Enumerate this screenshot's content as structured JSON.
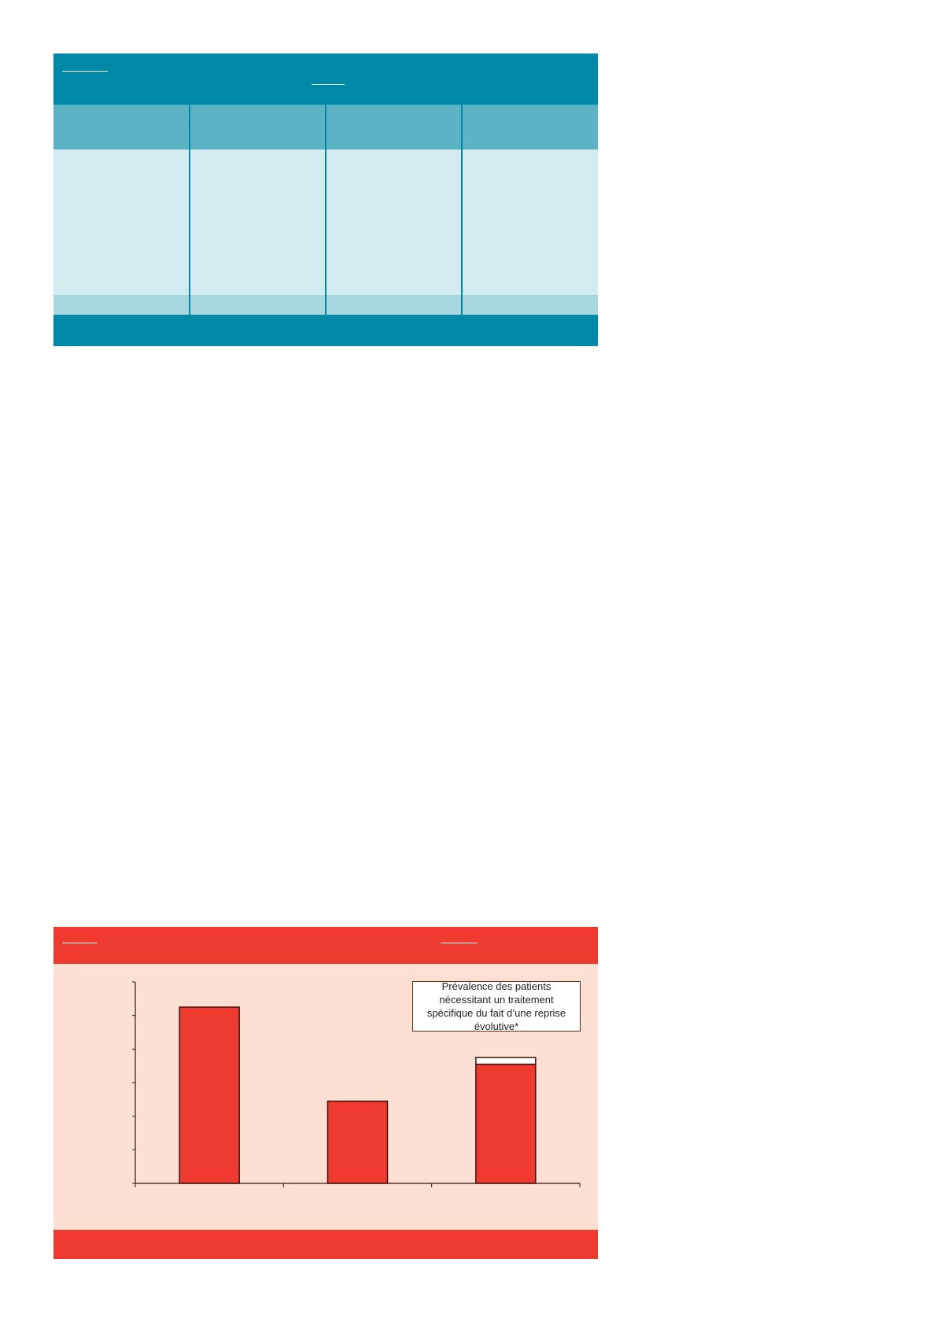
{
  "table": {
    "colors": {
      "header": "#0089a7",
      "column_header": "#5cb3c6",
      "body": "#d2ecef",
      "footer_row": "#a8d7df",
      "divider": "#0089a7"
    },
    "columns": 4
  },
  "figure": {
    "colors": {
      "band": "#ef3b2f",
      "background": "#fddfd3",
      "bar": "#ef3b2f",
      "bar_cap": "#ffffff"
    },
    "legend_text": "Prévalence des patients nécessitant un traitement spécifique du fait d’une reprise évolutive*"
  },
  "chart_data": {
    "type": "bar",
    "categories": [
      "",
      "",
      ""
    ],
    "series": [
      {
        "values": [
          5.25,
          2.45,
          3.55
        ]
      },
      {
        "values": [
          0,
          0,
          0.2
        ]
      }
    ],
    "stacked": true,
    "ylim": [
      0,
      6
    ],
    "yticks": [
      0,
      1,
      2,
      3,
      4,
      5,
      6
    ],
    "tick_labels_shown": false,
    "grid": false,
    "legend_placement": "top-right"
  }
}
